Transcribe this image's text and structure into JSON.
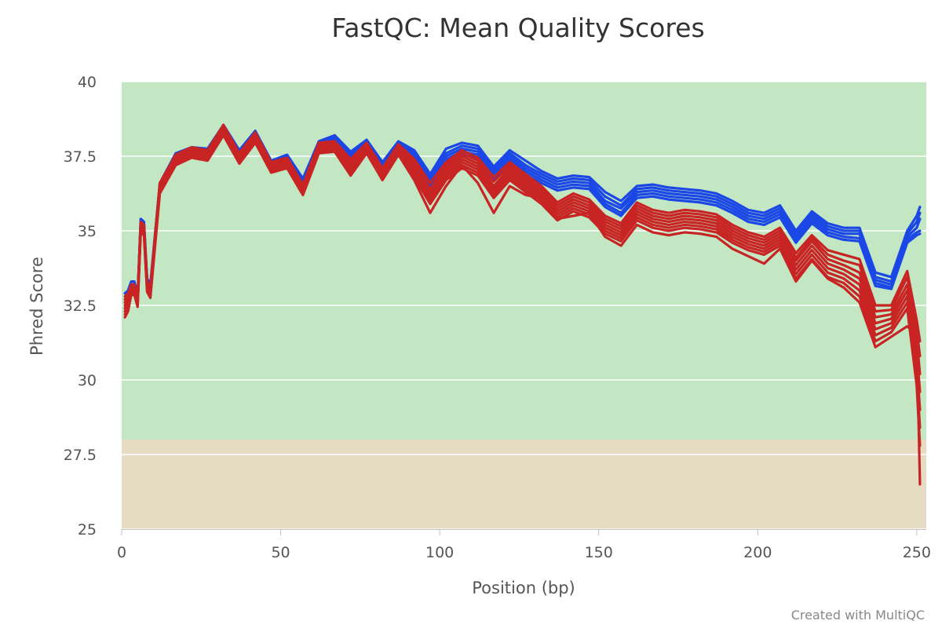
{
  "chart_data": {
    "type": "line",
    "title": "FastQC: Mean Quality Scores",
    "xlabel": "Position (bp)",
    "ylabel": "Phred Score",
    "credit": "Created with MultiQC",
    "xlim": [
      0,
      253
    ],
    "ylim": [
      25,
      40
    ],
    "xticks": [
      0,
      50,
      100,
      150,
      200,
      250
    ],
    "yticks": [
      25,
      27.5,
      30,
      32.5,
      35,
      37.5,
      40
    ],
    "ytick_labels": [
      "25",
      "27.5",
      "30",
      "32.5",
      "35",
      "37.5",
      "40"
    ],
    "grid": true,
    "bands": [
      {
        "from": 28,
        "to": 40,
        "color": "#c3e6c3"
      },
      {
        "from": 25,
        "to": 28,
        "color": "#e6dcc3"
      }
    ],
    "x": [
      1,
      2,
      3,
      4,
      5,
      6,
      7,
      8,
      9,
      12,
      17,
      22,
      27,
      32,
      37,
      42,
      47,
      52,
      57,
      62,
      67,
      72,
      77,
      82,
      87,
      92,
      97,
      102,
      107,
      112,
      117,
      122,
      127,
      132,
      137,
      142,
      147,
      152,
      157,
      162,
      167,
      172,
      177,
      182,
      187,
      192,
      197,
      202,
      207,
      212,
      217,
      222,
      227,
      232,
      237,
      242,
      247,
      250,
      251
    ],
    "series": [
      {
        "color": "#1a47e5",
        "values": [
          32.9,
          33.0,
          33.3,
          33.3,
          32.8,
          35.4,
          35.3,
          33.4,
          33.2,
          36.6,
          37.6,
          37.8,
          37.75,
          38.55,
          37.7,
          38.35,
          37.35,
          37.55,
          36.75,
          38.0,
          38.2,
          37.65,
          38.05,
          37.3,
          38.0,
          37.7,
          36.9,
          37.75,
          37.95,
          37.85,
          37.15,
          37.7,
          37.35,
          37.0,
          36.75,
          36.85,
          36.8,
          36.3,
          36.0,
          36.5,
          36.55,
          36.45,
          36.4,
          36.35,
          36.25,
          36.0,
          35.7,
          35.6,
          35.85,
          35.0,
          35.65,
          35.25,
          35.1,
          35.1,
          33.6,
          33.45,
          35.0,
          35.5,
          35.8
        ]
      },
      {
        "color": "#1a47e5",
        "values": [
          32.8,
          32.9,
          33.2,
          33.2,
          32.75,
          35.35,
          35.25,
          33.3,
          33.1,
          36.55,
          37.55,
          37.75,
          37.7,
          38.5,
          37.65,
          38.3,
          37.3,
          37.5,
          36.7,
          37.95,
          38.15,
          37.6,
          38.0,
          37.25,
          37.95,
          37.6,
          36.8,
          37.6,
          37.85,
          37.75,
          37.05,
          37.6,
          37.2,
          36.9,
          36.65,
          36.75,
          36.7,
          36.15,
          35.85,
          36.4,
          36.45,
          36.35,
          36.3,
          36.25,
          36.15,
          35.9,
          35.6,
          35.5,
          35.75,
          34.9,
          35.55,
          35.15,
          35.0,
          35.0,
          33.45,
          33.3,
          34.9,
          35.3,
          35.6
        ]
      },
      {
        "color": "#1a47e5",
        "values": [
          32.7,
          32.8,
          33.1,
          33.1,
          32.7,
          35.3,
          35.2,
          33.25,
          33.05,
          36.5,
          37.5,
          37.7,
          37.65,
          38.45,
          37.6,
          38.25,
          37.25,
          37.45,
          36.65,
          37.9,
          38.1,
          37.5,
          37.95,
          37.2,
          37.9,
          37.5,
          36.7,
          37.5,
          37.75,
          37.65,
          36.95,
          37.5,
          37.1,
          36.8,
          36.55,
          36.65,
          36.6,
          36.0,
          35.75,
          36.3,
          36.35,
          36.25,
          36.2,
          36.15,
          36.05,
          35.8,
          35.5,
          35.4,
          35.65,
          34.8,
          35.45,
          35.05,
          34.9,
          34.9,
          33.35,
          33.2,
          34.8,
          35.1,
          35.4
        ]
      },
      {
        "color": "#1a47e5",
        "values": [
          32.6,
          32.7,
          33.0,
          33.0,
          32.65,
          35.25,
          35.15,
          33.2,
          33.0,
          36.45,
          37.45,
          37.65,
          37.6,
          38.4,
          37.55,
          38.2,
          37.2,
          37.4,
          36.6,
          37.85,
          38.05,
          37.45,
          37.9,
          37.15,
          37.85,
          37.45,
          36.6,
          37.4,
          37.65,
          37.55,
          36.85,
          37.4,
          37.0,
          36.7,
          36.45,
          36.55,
          36.5,
          35.9,
          35.6,
          36.2,
          36.25,
          36.15,
          36.1,
          36.05,
          35.95,
          35.7,
          35.4,
          35.3,
          35.55,
          34.7,
          35.35,
          34.95,
          34.8,
          34.75,
          33.25,
          33.1,
          34.7,
          34.95,
          35.0
        ]
      },
      {
        "color": "#1a47e5",
        "values": [
          32.5,
          32.6,
          32.95,
          32.95,
          32.6,
          35.2,
          35.1,
          33.15,
          32.95,
          36.4,
          37.4,
          37.6,
          37.55,
          38.35,
          37.5,
          38.15,
          37.15,
          37.35,
          36.55,
          37.8,
          38.0,
          37.4,
          37.85,
          37.1,
          37.8,
          37.4,
          36.5,
          37.3,
          37.55,
          37.45,
          36.75,
          37.3,
          36.9,
          36.6,
          36.35,
          36.45,
          36.4,
          35.8,
          35.5,
          36.1,
          36.15,
          36.05,
          36.0,
          35.95,
          35.85,
          35.6,
          35.3,
          35.2,
          35.45,
          34.6,
          35.25,
          34.85,
          34.7,
          34.65,
          33.15,
          33.05,
          34.6,
          34.85,
          34.9
        ]
      },
      {
        "color": "#c82424",
        "values": [
          32.8,
          32.9,
          33.2,
          33.2,
          32.8,
          35.3,
          35.2,
          33.3,
          33.1,
          36.6,
          37.55,
          37.8,
          37.7,
          38.55,
          37.6,
          38.3,
          37.3,
          37.45,
          36.55,
          37.95,
          38.0,
          37.4,
          37.95,
          37.1,
          37.9,
          37.4,
          36.6,
          37.3,
          37.7,
          37.45,
          36.8,
          37.3,
          36.9,
          36.5,
          35.95,
          36.25,
          36.05,
          35.5,
          35.25,
          35.95,
          35.7,
          35.6,
          35.7,
          35.65,
          35.55,
          35.2,
          34.95,
          34.8,
          35.1,
          34.25,
          34.85,
          34.35,
          34.2,
          34.05,
          32.5,
          32.5,
          33.65,
          32.0,
          31.3
        ]
      },
      {
        "color": "#c82424",
        "values": [
          32.7,
          32.85,
          33.15,
          33.15,
          32.75,
          35.25,
          35.15,
          33.25,
          33.05,
          36.55,
          37.5,
          37.75,
          37.65,
          38.5,
          37.55,
          38.25,
          37.25,
          37.4,
          36.5,
          37.9,
          37.95,
          37.3,
          37.9,
          37.0,
          37.85,
          37.3,
          36.4,
          37.2,
          37.6,
          37.35,
          36.65,
          37.2,
          36.8,
          36.4,
          35.85,
          36.15,
          35.95,
          35.4,
          35.15,
          35.85,
          35.6,
          35.5,
          35.6,
          35.55,
          35.45,
          35.1,
          34.85,
          34.7,
          35.0,
          34.1,
          34.75,
          34.2,
          34.0,
          33.85,
          32.3,
          32.35,
          33.45,
          31.7,
          30.8
        ]
      },
      {
        "color": "#c82424",
        "values": [
          32.6,
          32.8,
          33.1,
          33.1,
          32.7,
          35.2,
          35.1,
          33.2,
          33.0,
          36.5,
          37.45,
          37.7,
          37.6,
          38.45,
          37.5,
          38.2,
          37.2,
          37.35,
          36.45,
          37.85,
          37.9,
          37.2,
          37.85,
          36.95,
          37.8,
          37.2,
          36.3,
          37.1,
          37.5,
          37.25,
          36.5,
          37.1,
          36.7,
          36.3,
          35.75,
          36.05,
          35.85,
          35.3,
          35.05,
          35.75,
          35.5,
          35.4,
          35.5,
          35.45,
          35.35,
          35.0,
          34.75,
          34.6,
          34.9,
          34.0,
          34.65,
          34.05,
          33.85,
          33.6,
          32.1,
          32.2,
          33.2,
          31.4,
          30.2
        ]
      },
      {
        "color": "#c82424",
        "values": [
          32.5,
          32.7,
          33.05,
          33.05,
          32.65,
          35.15,
          35.05,
          33.15,
          32.95,
          36.45,
          37.4,
          37.65,
          37.55,
          38.4,
          37.45,
          38.15,
          37.15,
          37.3,
          36.4,
          37.8,
          37.85,
          37.1,
          37.8,
          36.9,
          37.75,
          37.1,
          36.2,
          37.0,
          37.4,
          37.15,
          36.4,
          37.0,
          36.6,
          36.2,
          35.65,
          35.95,
          35.75,
          35.2,
          34.95,
          35.65,
          35.4,
          35.3,
          35.4,
          35.35,
          35.25,
          34.9,
          34.65,
          34.5,
          34.8,
          33.85,
          34.5,
          33.9,
          33.7,
          33.4,
          31.9,
          32.05,
          33.0,
          31.0,
          29.6
        ]
      },
      {
        "color": "#c82424",
        "values": [
          32.4,
          32.6,
          33.0,
          33.0,
          32.6,
          35.1,
          35.0,
          33.1,
          32.9,
          36.4,
          37.35,
          37.6,
          37.5,
          38.35,
          37.4,
          38.1,
          37.1,
          37.25,
          36.35,
          37.75,
          37.8,
          37.0,
          37.75,
          36.85,
          37.7,
          37.0,
          36.1,
          36.9,
          37.3,
          37.05,
          36.3,
          36.9,
          36.5,
          36.1,
          35.55,
          35.85,
          35.65,
          35.1,
          34.85,
          35.55,
          35.3,
          35.2,
          35.3,
          35.25,
          35.15,
          34.8,
          34.55,
          34.4,
          34.7,
          33.7,
          34.35,
          33.75,
          33.55,
          33.2,
          31.7,
          31.9,
          32.8,
          30.6,
          29.0
        ]
      },
      {
        "color": "#c82424",
        "values": [
          32.3,
          32.5,
          32.95,
          32.95,
          32.55,
          35.05,
          34.95,
          33.05,
          32.85,
          36.35,
          37.3,
          37.55,
          37.45,
          38.3,
          37.35,
          38.05,
          37.05,
          37.2,
          36.3,
          37.7,
          37.75,
          36.95,
          37.7,
          36.8,
          37.65,
          36.9,
          36.0,
          36.8,
          37.2,
          36.95,
          36.2,
          36.8,
          36.4,
          36.0,
          35.45,
          35.75,
          35.55,
          35.0,
          34.75,
          35.45,
          35.2,
          35.1,
          35.2,
          35.15,
          35.05,
          34.7,
          34.45,
          34.3,
          34.6,
          33.55,
          34.2,
          33.6,
          33.4,
          33.0,
          31.5,
          31.75,
          32.6,
          30.2,
          28.4
        ]
      },
      {
        "color": "#c82424",
        "values": [
          32.2,
          32.4,
          32.9,
          32.9,
          32.5,
          35.0,
          34.9,
          33.0,
          32.8,
          36.3,
          37.25,
          37.5,
          37.4,
          38.25,
          37.3,
          38.0,
          37.0,
          37.15,
          36.25,
          37.65,
          37.7,
          36.9,
          37.65,
          36.75,
          37.6,
          36.8,
          35.9,
          36.7,
          37.1,
          36.85,
          36.1,
          36.7,
          36.3,
          35.9,
          35.35,
          35.65,
          35.45,
          34.9,
          34.65,
          35.35,
          35.1,
          35.0,
          35.1,
          35.05,
          34.95,
          34.6,
          34.35,
          34.2,
          34.5,
          33.4,
          34.05,
          33.45,
          33.25,
          32.8,
          31.3,
          31.6,
          32.4,
          29.8,
          27.8
        ]
      },
      {
        "color": "#c82424",
        "values": [
          32.1,
          32.3,
          32.85,
          32.85,
          32.45,
          34.95,
          34.85,
          32.95,
          32.75,
          36.25,
          37.2,
          37.45,
          37.35,
          38.2,
          37.25,
          37.95,
          36.95,
          37.1,
          36.2,
          37.6,
          37.65,
          36.85,
          37.6,
          36.7,
          37.55,
          36.7,
          35.6,
          36.5,
          37.2,
          36.6,
          35.6,
          36.5,
          36.2,
          36.1,
          35.4,
          35.5,
          35.6,
          34.8,
          34.5,
          35.2,
          34.95,
          34.85,
          34.95,
          34.9,
          34.8,
          34.4,
          34.15,
          33.9,
          34.4,
          33.3,
          34.0,
          33.4,
          33.1,
          32.6,
          31.1,
          31.45,
          31.8,
          31.5,
          26.5
        ]
      }
    ]
  }
}
